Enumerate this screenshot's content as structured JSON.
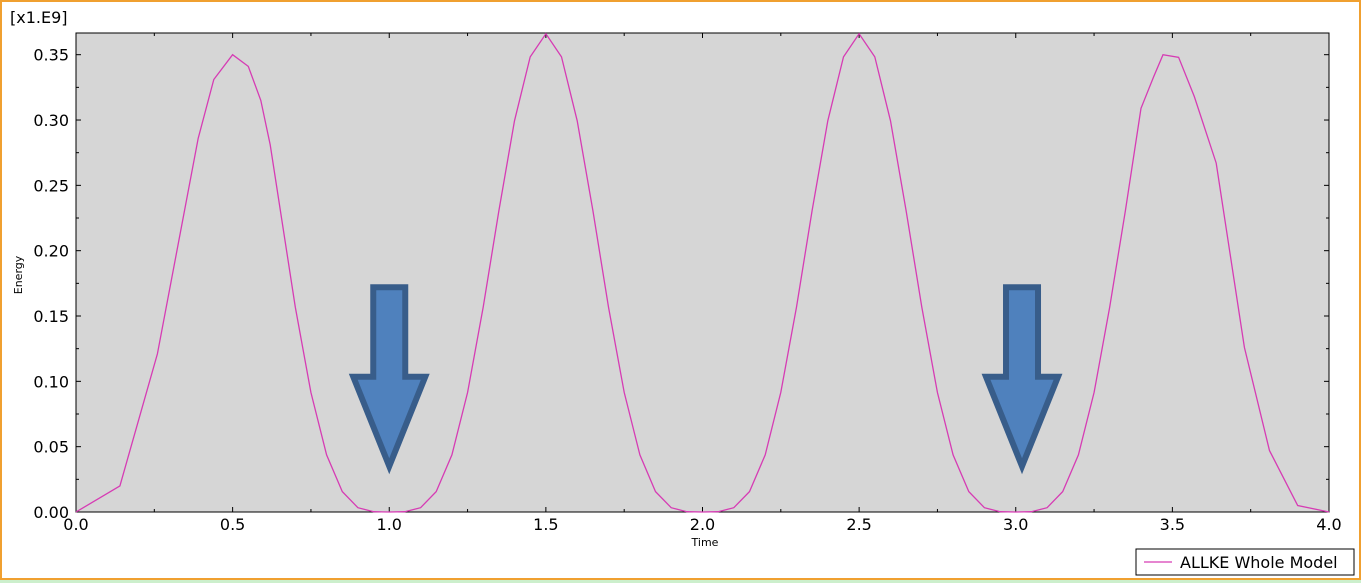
{
  "chart_data": {
    "type": "line",
    "title": "",
    "xlabel": "Time",
    "ylabel": "Energy",
    "y_multiplier_label": "[x1.E9]",
    "xlim": [
      0,
      4.0
    ],
    "ylim": [
      0,
      0.3666
    ],
    "x_ticks": [
      "0.0",
      "0.5",
      "1.0",
      "1.5",
      "2.0",
      "2.5",
      "3.0",
      "3.5",
      "4.0"
    ],
    "y_ticks": [
      "0.00",
      "0.05",
      "0.10",
      "0.15",
      "0.20",
      "0.25",
      "0.30",
      "0.35"
    ],
    "grid": false,
    "background": "#d6d6d6",
    "legend_position": "bottom-right",
    "series": [
      {
        "name": "ALLKE Whole Model",
        "color": "#d63cb4",
        "x": [
          0,
          0.14,
          0.26,
          0.39,
          0.44,
          0.5,
          0.55,
          0.59,
          0.62,
          0.7,
          0.75,
          0.8,
          0.85,
          0.9,
          0.95,
          1.0,
          1.05,
          1.1,
          1.15,
          1.2,
          1.25,
          1.3,
          1.35,
          1.4,
          1.45,
          1.5,
          1.55,
          1.6,
          1.65,
          1.7,
          1.75,
          1.8,
          1.85,
          1.9,
          1.95,
          2.0,
          2.05,
          2.1,
          2.15,
          2.2,
          2.25,
          2.3,
          2.35,
          2.4,
          2.45,
          2.5,
          2.55,
          2.6,
          2.65,
          2.7,
          2.75,
          2.8,
          2.85,
          2.9,
          2.95,
          3.0,
          3.05,
          3.1,
          3.15,
          3.2,
          3.25,
          3.3,
          3.35,
          3.4,
          3.44,
          3.47,
          3.52,
          3.57,
          3.64,
          3.73,
          3.81,
          3.9,
          4.0
        ],
        "y": [
          0,
          0.02,
          0.121,
          0.286,
          0.331,
          0.35,
          0.341,
          0.315,
          0.281,
          0.1568,
          0.0915,
          0.0437,
          0.0156,
          0.0033,
          0.0002,
          0,
          0.0002,
          0.0033,
          0.0156,
          0.0437,
          0.0915,
          0.1568,
          0.2307,
          0.2994,
          0.3483,
          0.366,
          0.3483,
          0.2994,
          0.2307,
          0.1568,
          0.0915,
          0.0437,
          0.0156,
          0.0033,
          0.0002,
          0,
          0.0002,
          0.0033,
          0.0156,
          0.0437,
          0.0915,
          0.1568,
          0.2307,
          0.2994,
          0.3483,
          0.366,
          0.3483,
          0.2994,
          0.2307,
          0.1568,
          0.0915,
          0.0437,
          0.0156,
          0.0033,
          0.0002,
          0,
          0.0002,
          0.0033,
          0.0156,
          0.0437,
          0.0915,
          0.1568,
          0.2307,
          0.309,
          0.333,
          0.35,
          0.348,
          0.318,
          0.267,
          0.126,
          0.047,
          0.005,
          0
        ]
      }
    ],
    "annotations": [
      {
        "type": "arrow-down",
        "x": 1.0,
        "y_top": 0.172,
        "y_tip": 0.035,
        "color": "#4f81bd",
        "border": "#385d8a"
      },
      {
        "type": "arrow-down",
        "x": 3.02,
        "y_top": 0.172,
        "y_tip": 0.035,
        "color": "#4f81bd",
        "border": "#385d8a"
      }
    ]
  }
}
